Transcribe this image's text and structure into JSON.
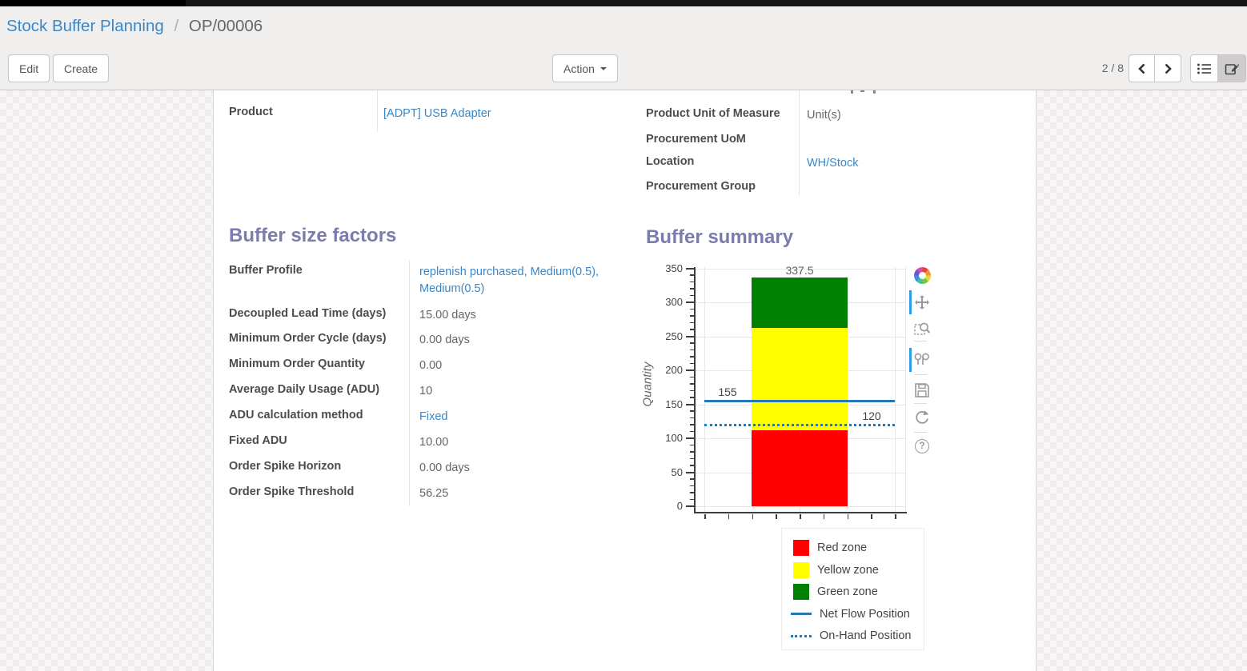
{
  "breadcrumb": {
    "parent": "Stock Buffer Planning",
    "separator": "/",
    "current": "OP/00006"
  },
  "toolbar": {
    "edit": "Edit",
    "create": "Create",
    "action": "Action",
    "pager": "2 / 8"
  },
  "colors": {
    "heading_purple": "#7c7bad",
    "link_blue": "#3a87c8",
    "red_zone": "#ff0000",
    "yellow_zone": "#ffff00",
    "green_zone": "#008000",
    "flow_line_blue": "#2677b5",
    "modebar_active_blue": "#2e9fe6"
  },
  "form": {
    "left_group": {
      "fields": [
        {
          "label": "Product",
          "value": "[ADPT] USB Adapter",
          "link": true
        }
      ]
    },
    "right_group": {
      "fields": [
        {
          "label": "Product Unit of Measure",
          "value": "Unit(s)",
          "link": false
        },
        {
          "label": "Procurement UoM",
          "value": "",
          "link": false
        },
        {
          "label": "Location",
          "value": "WH/Stock",
          "link": true
        },
        {
          "label": "Procurement Group",
          "value": "",
          "link": false
        }
      ]
    },
    "buffer_factors": {
      "title": "Buffer size factors",
      "fields": [
        {
          "label": "Buffer Profile",
          "value": "replenish purchased, Medium(0.5), Medium(0.5)",
          "link": true
        },
        {
          "label": "Decoupled Lead Time (days)",
          "value": "15.00",
          "unit": "days"
        },
        {
          "label": "Minimum Order Cycle (days)",
          "value": "0.00",
          "unit": "days"
        },
        {
          "label": "Minimum Order Quantity",
          "value": "0.00"
        },
        {
          "label": "Average Daily Usage (ADU)",
          "value": "10"
        },
        {
          "label": "ADU calculation method",
          "value": "Fixed",
          "link": true
        },
        {
          "label": "Fixed ADU",
          "value": "10.00"
        },
        {
          "label": "Order Spike Horizon",
          "value": "0.00",
          "unit": "days"
        },
        {
          "label": "Order Spike Threshold",
          "value": "56.25"
        }
      ]
    },
    "buffer_summary": {
      "title": "Buffer summary"
    }
  },
  "chart_data": {
    "type": "bar",
    "title": "",
    "xlabel": "",
    "ylabel": "Quantity",
    "ylim": [
      0,
      350
    ],
    "yticks": [
      0,
      50,
      100,
      150,
      200,
      250,
      300,
      350
    ],
    "grid": true,
    "zones": [
      {
        "name": "Red zone",
        "from": 0,
        "to": 112.5,
        "color": "#ff0000",
        "label": "112.5"
      },
      {
        "name": "Yellow zone",
        "from": 112.5,
        "to": 262.5,
        "color": "#ffff00",
        "label": "262.5"
      },
      {
        "name": "Green zone",
        "from": 262.5,
        "to": 337.5,
        "color": "#008000",
        "label": "337.5"
      }
    ],
    "lines": [
      {
        "name": "Net Flow Position",
        "value": 155,
        "style": "solid",
        "color": "#2677b5",
        "label": "155",
        "label_side": "left"
      },
      {
        "name": "On-Hand Position",
        "value": 120,
        "style": "dotted",
        "color": "#2677b5",
        "label": "120",
        "label_side": "right"
      }
    ],
    "legend": [
      "Red zone",
      "Yellow zone",
      "Green zone",
      "Net Flow Position",
      "On-Hand Position"
    ],
    "legend_position": "bottom-right"
  },
  "modebar_icons": [
    "plotly-logo",
    "pan",
    "box-zoom",
    "hover-compare",
    "save",
    "reset",
    "help"
  ]
}
